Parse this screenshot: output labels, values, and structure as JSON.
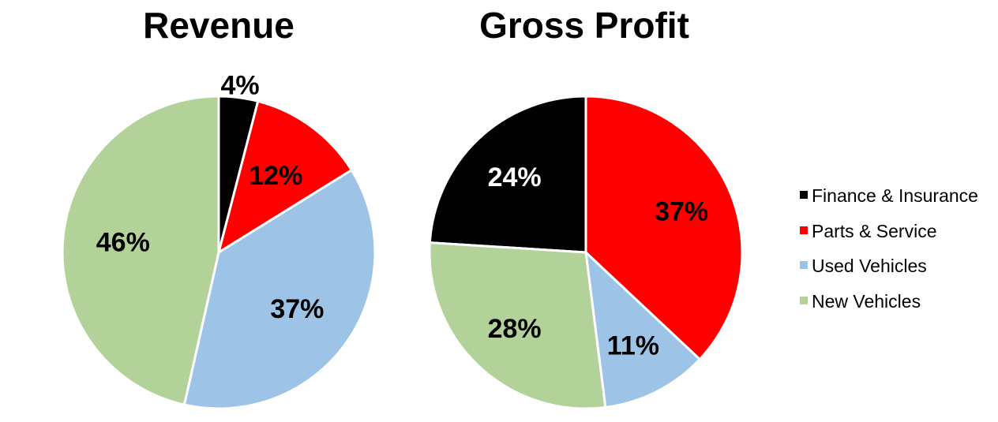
{
  "legend": {
    "position": "right",
    "items": [
      {
        "label": "Finance & Insurance",
        "color": "#000000"
      },
      {
        "label": "Parts & Service",
        "color": "#ff0000"
      },
      {
        "label": "Used Vehicles",
        "color": "#9dc3e6"
      },
      {
        "label": "New Vehicles",
        "color": "#b3d29a"
      }
    ]
  },
  "chart_data": [
    {
      "type": "pie",
      "title": "Revenue",
      "start_angle_deg": 0,
      "direction": "clockwise",
      "slices": [
        {
          "label": "Finance & Insurance",
          "value": 4,
          "display": "4%",
          "color": "#000000",
          "label_color": "#000000",
          "label_outside": true
        },
        {
          "label": "Parts & Service",
          "value": 12,
          "display": "12%",
          "color": "#ff0000",
          "label_color": "#000000"
        },
        {
          "label": "Used Vehicles",
          "value": 37,
          "display": "37%",
          "color": "#9dc3e6",
          "label_color": "#000000"
        },
        {
          "label": "New Vehicles",
          "value": 46,
          "display": "46%",
          "color": "#b3d29a",
          "label_color": "#000000"
        }
      ]
    },
    {
      "type": "pie",
      "title": "Gross Profit",
      "start_angle_deg": -86.4,
      "direction": "clockwise",
      "slices": [
        {
          "label": "Finance & Insurance",
          "value": 24,
          "display": "24%",
          "color": "#000000",
          "label_color": "#ffffff"
        },
        {
          "label": "Parts & Service",
          "value": 37,
          "display": "37%",
          "color": "#ff0000",
          "label_color": "#000000"
        },
        {
          "label": "Used Vehicles",
          "value": 11,
          "display": "11%",
          "color": "#9dc3e6",
          "label_color": "#000000"
        },
        {
          "label": "New Vehicles",
          "value": 28,
          "display": "28%",
          "color": "#b3d29a",
          "label_color": "#000000"
        }
      ]
    }
  ]
}
